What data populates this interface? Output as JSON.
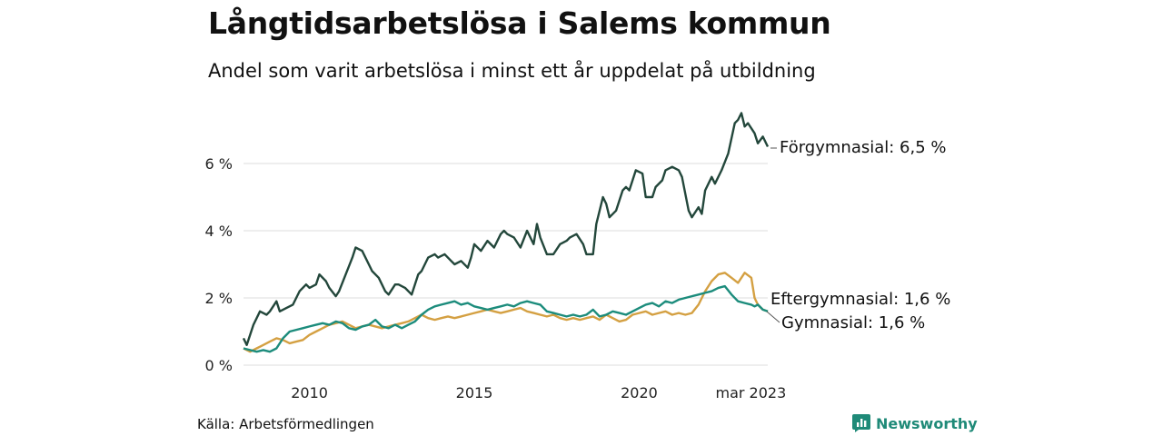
{
  "title": "Långtidsarbetslösa i Salems kommun",
  "subtitle": "Andel som varit arbetslösa i minst ett år uppdelat på utbildning",
  "source": "Källa: Arbetsförmedlingen",
  "brand": {
    "name": "Newsworthy",
    "icon": "bar-chart-logo-icon",
    "color": "#1f8a78"
  },
  "chart_data": {
    "type": "line",
    "x_unit": "monthly, jan 2008 – mar 2023",
    "x_ticks": [
      {
        "year": 2010,
        "label": "2010"
      },
      {
        "year": 2015,
        "label": "2015"
      },
      {
        "year": 2020,
        "label": "2020"
      },
      {
        "year": 2023.167,
        "label": "mar 2023"
      }
    ],
    "y_ticks": [
      {
        "value": 0,
        "label": "0 %"
      },
      {
        "value": 2,
        "label": "2 %"
      },
      {
        "value": 4,
        "label": "4 %"
      },
      {
        "value": 6,
        "label": "6 %"
      }
    ],
    "ylim": [
      0,
      7.6
    ],
    "grid": true,
    "series": [
      {
        "name": "Förgymnasial",
        "end_label": "Förgymnasial: 6,5 %",
        "color": "#23473b",
        "points": [
          [
            2008.0,
            0.8
          ],
          [
            2008.1,
            0.6
          ],
          [
            2008.3,
            1.2
          ],
          [
            2008.5,
            1.6
          ],
          [
            2008.7,
            1.5
          ],
          [
            2008.8,
            1.6
          ],
          [
            2009.0,
            1.9
          ],
          [
            2009.1,
            1.6
          ],
          [
            2009.3,
            1.7
          ],
          [
            2009.5,
            1.8
          ],
          [
            2009.7,
            2.2
          ],
          [
            2009.9,
            2.4
          ],
          [
            2010.0,
            2.3
          ],
          [
            2010.2,
            2.4
          ],
          [
            2010.3,
            2.7
          ],
          [
            2010.5,
            2.5
          ],
          [
            2010.6,
            2.3
          ],
          [
            2010.8,
            2.05
          ],
          [
            2010.9,
            2.2
          ],
          [
            2011.1,
            2.7
          ],
          [
            2011.3,
            3.2
          ],
          [
            2011.4,
            3.5
          ],
          [
            2011.6,
            3.4
          ],
          [
            2011.8,
            3.0
          ],
          [
            2011.9,
            2.8
          ],
          [
            2012.1,
            2.6
          ],
          [
            2012.3,
            2.2
          ],
          [
            2012.4,
            2.1
          ],
          [
            2012.6,
            2.4
          ],
          [
            2012.7,
            2.4
          ],
          [
            2012.9,
            2.3
          ],
          [
            2013.1,
            2.1
          ],
          [
            2013.3,
            2.7
          ],
          [
            2013.4,
            2.8
          ],
          [
            2013.6,
            3.2
          ],
          [
            2013.8,
            3.3
          ],
          [
            2013.9,
            3.2
          ],
          [
            2014.1,
            3.3
          ],
          [
            2014.3,
            3.1
          ],
          [
            2014.4,
            3.0
          ],
          [
            2014.6,
            3.1
          ],
          [
            2014.8,
            2.9
          ],
          [
            2014.9,
            3.2
          ],
          [
            2015.0,
            3.6
          ],
          [
            2015.2,
            3.4
          ],
          [
            2015.4,
            3.7
          ],
          [
            2015.6,
            3.5
          ],
          [
            2015.8,
            3.9
          ],
          [
            2015.9,
            4.0
          ],
          [
            2016.0,
            3.9
          ],
          [
            2016.2,
            3.8
          ],
          [
            2016.4,
            3.5
          ],
          [
            2016.6,
            4.0
          ],
          [
            2016.8,
            3.6
          ],
          [
            2016.9,
            4.2
          ],
          [
            2017.0,
            3.8
          ],
          [
            2017.2,
            3.3
          ],
          [
            2017.4,
            3.3
          ],
          [
            2017.6,
            3.6
          ],
          [
            2017.8,
            3.7
          ],
          [
            2017.9,
            3.8
          ],
          [
            2018.1,
            3.9
          ],
          [
            2018.3,
            3.6
          ],
          [
            2018.4,
            3.3
          ],
          [
            2018.6,
            3.3
          ],
          [
            2018.7,
            4.2
          ],
          [
            2018.9,
            5.0
          ],
          [
            2019.0,
            4.8
          ],
          [
            2019.1,
            4.4
          ],
          [
            2019.3,
            4.6
          ],
          [
            2019.5,
            5.2
          ],
          [
            2019.6,
            5.3
          ],
          [
            2019.7,
            5.2
          ],
          [
            2019.9,
            5.8
          ],
          [
            2020.1,
            5.7
          ],
          [
            2020.2,
            5.0
          ],
          [
            2020.4,
            5.0
          ],
          [
            2020.5,
            5.3
          ],
          [
            2020.7,
            5.5
          ],
          [
            2020.8,
            5.8
          ],
          [
            2021.0,
            5.9
          ],
          [
            2021.2,
            5.8
          ],
          [
            2021.3,
            5.6
          ],
          [
            2021.5,
            4.6
          ],
          [
            2021.6,
            4.4
          ],
          [
            2021.8,
            4.7
          ],
          [
            2021.9,
            4.5
          ],
          [
            2022.0,
            5.2
          ],
          [
            2022.2,
            5.6
          ],
          [
            2022.3,
            5.4
          ],
          [
            2022.5,
            5.8
          ],
          [
            2022.7,
            6.3
          ],
          [
            2022.9,
            7.2
          ],
          [
            2023.0,
            7.3
          ],
          [
            2023.1,
            7.5
          ],
          [
            2023.2,
            7.1
          ],
          [
            2023.3,
            7.2
          ],
          [
            2023.5,
            6.9
          ],
          [
            2023.6,
            6.6
          ],
          [
            2023.75,
            6.8
          ],
          [
            2023.9,
            6.5
          ]
        ]
      },
      {
        "name": "Eftergymnasial",
        "end_label": "Eftergymnasial: 1,6 %",
        "color": "#d4a042",
        "points": [
          [
            2008.0,
            0.5
          ],
          [
            2008.2,
            0.4
          ],
          [
            2008.4,
            0.5
          ],
          [
            2008.6,
            0.6
          ],
          [
            2008.8,
            0.7
          ],
          [
            2009.0,
            0.8
          ],
          [
            2009.2,
            0.75
          ],
          [
            2009.4,
            0.65
          ],
          [
            2009.6,
            0.7
          ],
          [
            2009.8,
            0.75
          ],
          [
            2010.0,
            0.9
          ],
          [
            2010.2,
            1.0
          ],
          [
            2010.4,
            1.1
          ],
          [
            2010.6,
            1.2
          ],
          [
            2010.8,
            1.25
          ],
          [
            2011.0,
            1.3
          ],
          [
            2011.2,
            1.2
          ],
          [
            2011.4,
            1.1
          ],
          [
            2011.6,
            1.15
          ],
          [
            2011.8,
            1.2
          ],
          [
            2012.0,
            1.15
          ],
          [
            2012.2,
            1.1
          ],
          [
            2012.4,
            1.15
          ],
          [
            2012.6,
            1.2
          ],
          [
            2012.8,
            1.25
          ],
          [
            2013.0,
            1.3
          ],
          [
            2013.2,
            1.4
          ],
          [
            2013.4,
            1.5
          ],
          [
            2013.6,
            1.4
          ],
          [
            2013.8,
            1.35
          ],
          [
            2014.0,
            1.4
          ],
          [
            2014.2,
            1.45
          ],
          [
            2014.4,
            1.4
          ],
          [
            2014.6,
            1.45
          ],
          [
            2014.8,
            1.5
          ],
          [
            2015.0,
            1.55
          ],
          [
            2015.2,
            1.6
          ],
          [
            2015.4,
            1.65
          ],
          [
            2015.6,
            1.6
          ],
          [
            2015.8,
            1.55
          ],
          [
            2016.0,
            1.6
          ],
          [
            2016.2,
            1.65
          ],
          [
            2016.4,
            1.7
          ],
          [
            2016.6,
            1.6
          ],
          [
            2016.8,
            1.55
          ],
          [
            2017.0,
            1.5
          ],
          [
            2017.2,
            1.45
          ],
          [
            2017.4,
            1.5
          ],
          [
            2017.6,
            1.4
          ],
          [
            2017.8,
            1.35
          ],
          [
            2018.0,
            1.4
          ],
          [
            2018.2,
            1.35
          ],
          [
            2018.4,
            1.4
          ],
          [
            2018.6,
            1.45
          ],
          [
            2018.8,
            1.35
          ],
          [
            2019.0,
            1.5
          ],
          [
            2019.2,
            1.4
          ],
          [
            2019.4,
            1.3
          ],
          [
            2019.6,
            1.35
          ],
          [
            2019.8,
            1.5
          ],
          [
            2020.0,
            1.55
          ],
          [
            2020.2,
            1.6
          ],
          [
            2020.4,
            1.5
          ],
          [
            2020.6,
            1.55
          ],
          [
            2020.8,
            1.6
          ],
          [
            2021.0,
            1.5
          ],
          [
            2021.2,
            1.55
          ],
          [
            2021.4,
            1.5
          ],
          [
            2021.6,
            1.55
          ],
          [
            2021.8,
            1.8
          ],
          [
            2022.0,
            2.2
          ],
          [
            2022.2,
            2.5
          ],
          [
            2022.4,
            2.7
          ],
          [
            2022.6,
            2.75
          ],
          [
            2022.8,
            2.6
          ],
          [
            2023.0,
            2.45
          ],
          [
            2023.2,
            2.75
          ],
          [
            2023.4,
            2.6
          ],
          [
            2023.5,
            2.0
          ],
          [
            2023.6,
            1.8
          ],
          [
            2023.75,
            1.65
          ],
          [
            2023.9,
            1.6
          ]
        ]
      },
      {
        "name": "Gymnasial",
        "end_label": "Gymnasial: 1,6 %",
        "color": "#1c8c7c",
        "points": [
          [
            2008.0,
            0.5
          ],
          [
            2008.2,
            0.45
          ],
          [
            2008.4,
            0.4
          ],
          [
            2008.6,
            0.45
          ],
          [
            2008.8,
            0.4
          ],
          [
            2009.0,
            0.5
          ],
          [
            2009.2,
            0.8
          ],
          [
            2009.4,
            1.0
          ],
          [
            2009.6,
            1.05
          ],
          [
            2009.8,
            1.1
          ],
          [
            2010.0,
            1.15
          ],
          [
            2010.2,
            1.2
          ],
          [
            2010.4,
            1.25
          ],
          [
            2010.6,
            1.2
          ],
          [
            2010.8,
            1.3
          ],
          [
            2011.0,
            1.25
          ],
          [
            2011.2,
            1.1
          ],
          [
            2011.4,
            1.05
          ],
          [
            2011.6,
            1.15
          ],
          [
            2011.8,
            1.2
          ],
          [
            2012.0,
            1.35
          ],
          [
            2012.2,
            1.15
          ],
          [
            2012.4,
            1.1
          ],
          [
            2012.6,
            1.2
          ],
          [
            2012.8,
            1.1
          ],
          [
            2013.0,
            1.2
          ],
          [
            2013.2,
            1.3
          ],
          [
            2013.4,
            1.5
          ],
          [
            2013.6,
            1.65
          ],
          [
            2013.8,
            1.75
          ],
          [
            2014.0,
            1.8
          ],
          [
            2014.2,
            1.85
          ],
          [
            2014.4,
            1.9
          ],
          [
            2014.6,
            1.8
          ],
          [
            2014.8,
            1.85
          ],
          [
            2015.0,
            1.75
          ],
          [
            2015.2,
            1.7
          ],
          [
            2015.4,
            1.65
          ],
          [
            2015.6,
            1.7
          ],
          [
            2015.8,
            1.75
          ],
          [
            2016.0,
            1.8
          ],
          [
            2016.2,
            1.75
          ],
          [
            2016.4,
            1.85
          ],
          [
            2016.6,
            1.9
          ],
          [
            2016.8,
            1.85
          ],
          [
            2017.0,
            1.8
          ],
          [
            2017.2,
            1.6
          ],
          [
            2017.4,
            1.55
          ],
          [
            2017.6,
            1.5
          ],
          [
            2017.8,
            1.45
          ],
          [
            2018.0,
            1.5
          ],
          [
            2018.2,
            1.45
          ],
          [
            2018.4,
            1.5
          ],
          [
            2018.6,
            1.65
          ],
          [
            2018.8,
            1.45
          ],
          [
            2019.0,
            1.5
          ],
          [
            2019.2,
            1.6
          ],
          [
            2019.4,
            1.55
          ],
          [
            2019.6,
            1.5
          ],
          [
            2019.8,
            1.6
          ],
          [
            2020.0,
            1.7
          ],
          [
            2020.2,
            1.8
          ],
          [
            2020.4,
            1.85
          ],
          [
            2020.6,
            1.75
          ],
          [
            2020.8,
            1.9
          ],
          [
            2021.0,
            1.85
          ],
          [
            2021.2,
            1.95
          ],
          [
            2021.4,
            2.0
          ],
          [
            2021.6,
            2.05
          ],
          [
            2021.8,
            2.1
          ],
          [
            2022.0,
            2.15
          ],
          [
            2022.2,
            2.2
          ],
          [
            2022.4,
            2.3
          ],
          [
            2022.6,
            2.35
          ],
          [
            2022.8,
            2.1
          ],
          [
            2023.0,
            1.9
          ],
          [
            2023.2,
            1.85
          ],
          [
            2023.4,
            1.8
          ],
          [
            2023.5,
            1.75
          ],
          [
            2023.6,
            1.8
          ],
          [
            2023.75,
            1.65
          ],
          [
            2023.9,
            1.6
          ]
        ]
      }
    ]
  }
}
